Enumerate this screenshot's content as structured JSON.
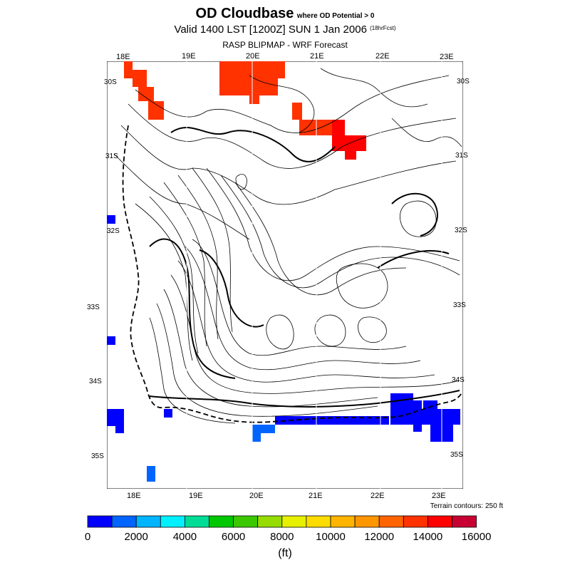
{
  "title": {
    "main": "OD Cloudbase",
    "condition": "where OD Potential > 0",
    "valid": "Valid 1400 LST [1200Z] SUN 1 Jan 2006",
    "forecast_hours": "(18hrFcst)",
    "source": "RASP BLIPMAP - WRF Forecast"
  },
  "axes": {
    "top_lon": [
      "18E",
      "19E",
      "20E",
      "21E",
      "22E",
      "23E"
    ],
    "bottom_lon": [
      "18E",
      "19E",
      "20E",
      "21E",
      "22E",
      "23E"
    ],
    "left_lat": [
      "30S",
      "31S",
      "32S",
      "33S",
      "34S",
      "35S"
    ],
    "right_lat": [
      "30S",
      "31S",
      "32S",
      "33S",
      "34S",
      "35S"
    ]
  },
  "terrain_note": "Terrain contours: 250 ft",
  "colorbar": {
    "labels": [
      "0",
      "2000",
      "4000",
      "6000",
      "8000",
      "10000",
      "12000",
      "14000",
      "16000"
    ],
    "unit": "(ft)",
    "colors": [
      "#0000ff",
      "#0064ff",
      "#00b4ff",
      "#00f0ff",
      "#00dc96",
      "#00c800",
      "#3cc800",
      "#96dc00",
      "#e6f000",
      "#ffdc00",
      "#ffb400",
      "#ff9600",
      "#ff6400",
      "#ff3200",
      "#ff0000",
      "#c80032"
    ]
  },
  "colors": {
    "contour": "#000000",
    "background": "#ffffff"
  }
}
